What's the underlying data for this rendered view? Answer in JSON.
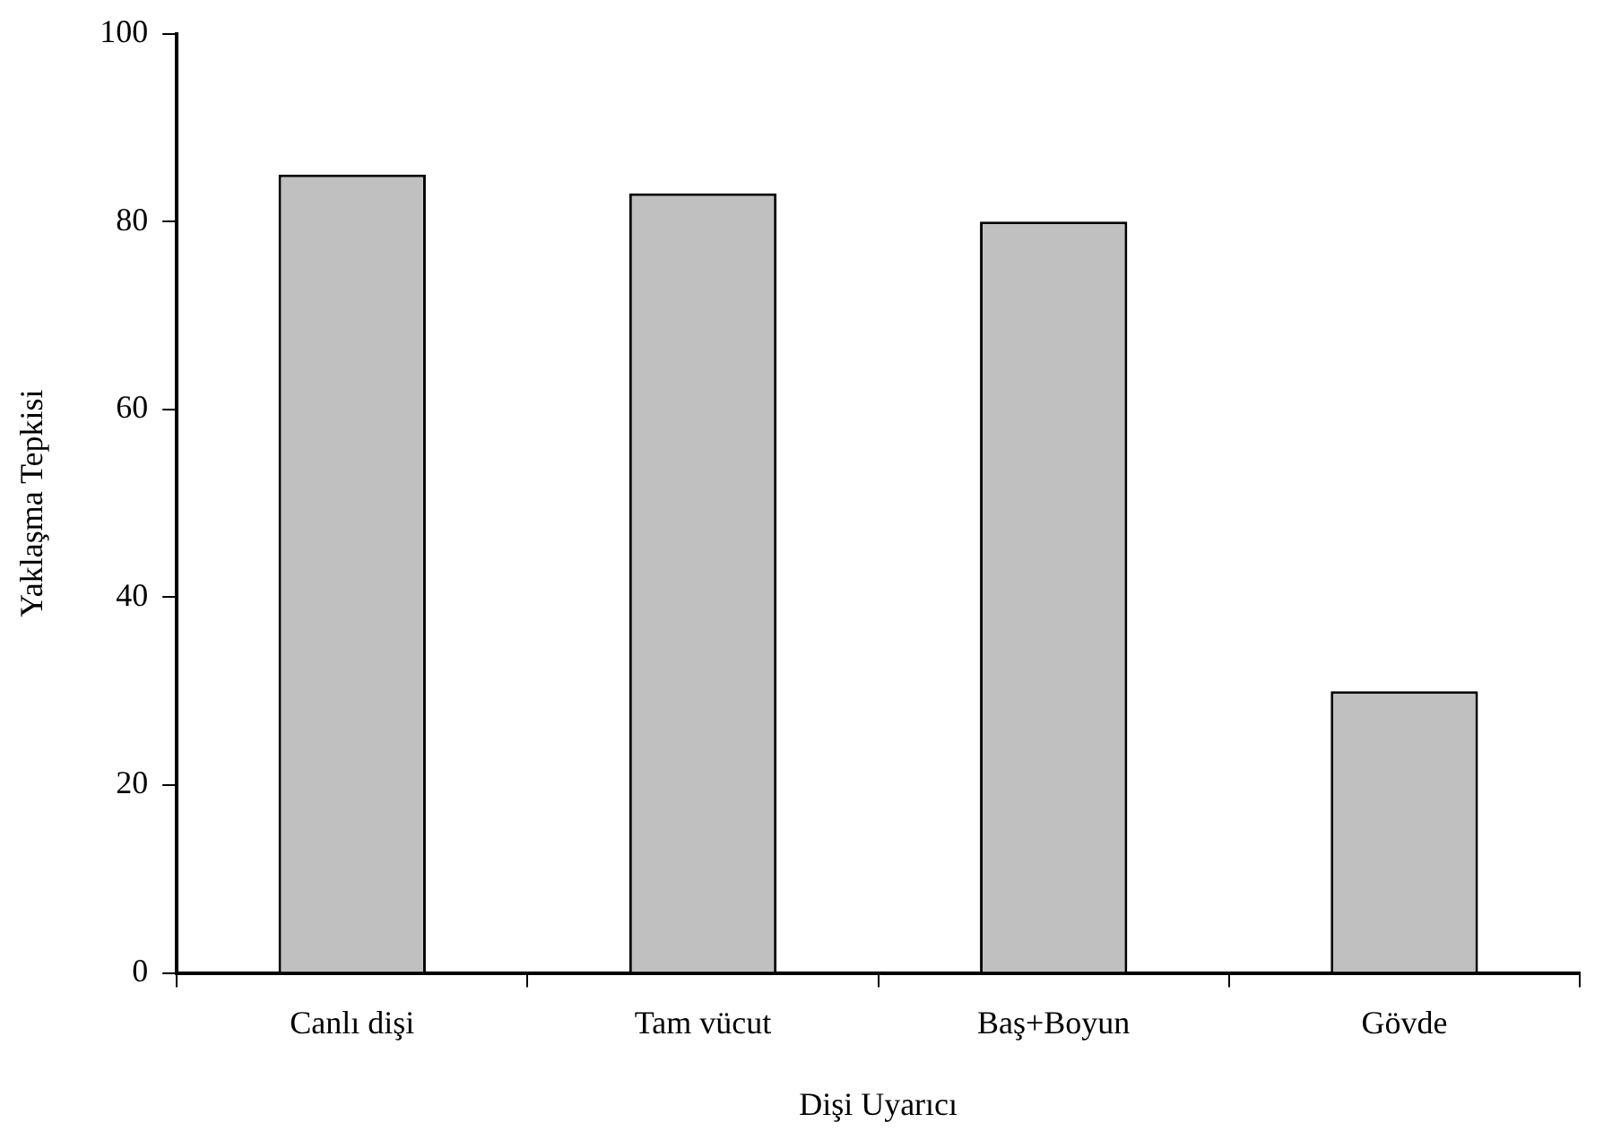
{
  "chart_data": {
    "type": "bar",
    "xlabel": "Dişi Uyarıcı",
    "ylabel": "Yaklaşma Tepkisi",
    "categories": [
      "Canlı dişi",
      "Tam vücut",
      "Baş+Boyun",
      "Gövde"
    ],
    "values": [
      85,
      83,
      80,
      30
    ],
    "color": "#c0c0c0",
    "ylim": [
      0,
      100
    ],
    "yticks": [
      0,
      20,
      40,
      60,
      80,
      100
    ],
    "grid": false
  }
}
